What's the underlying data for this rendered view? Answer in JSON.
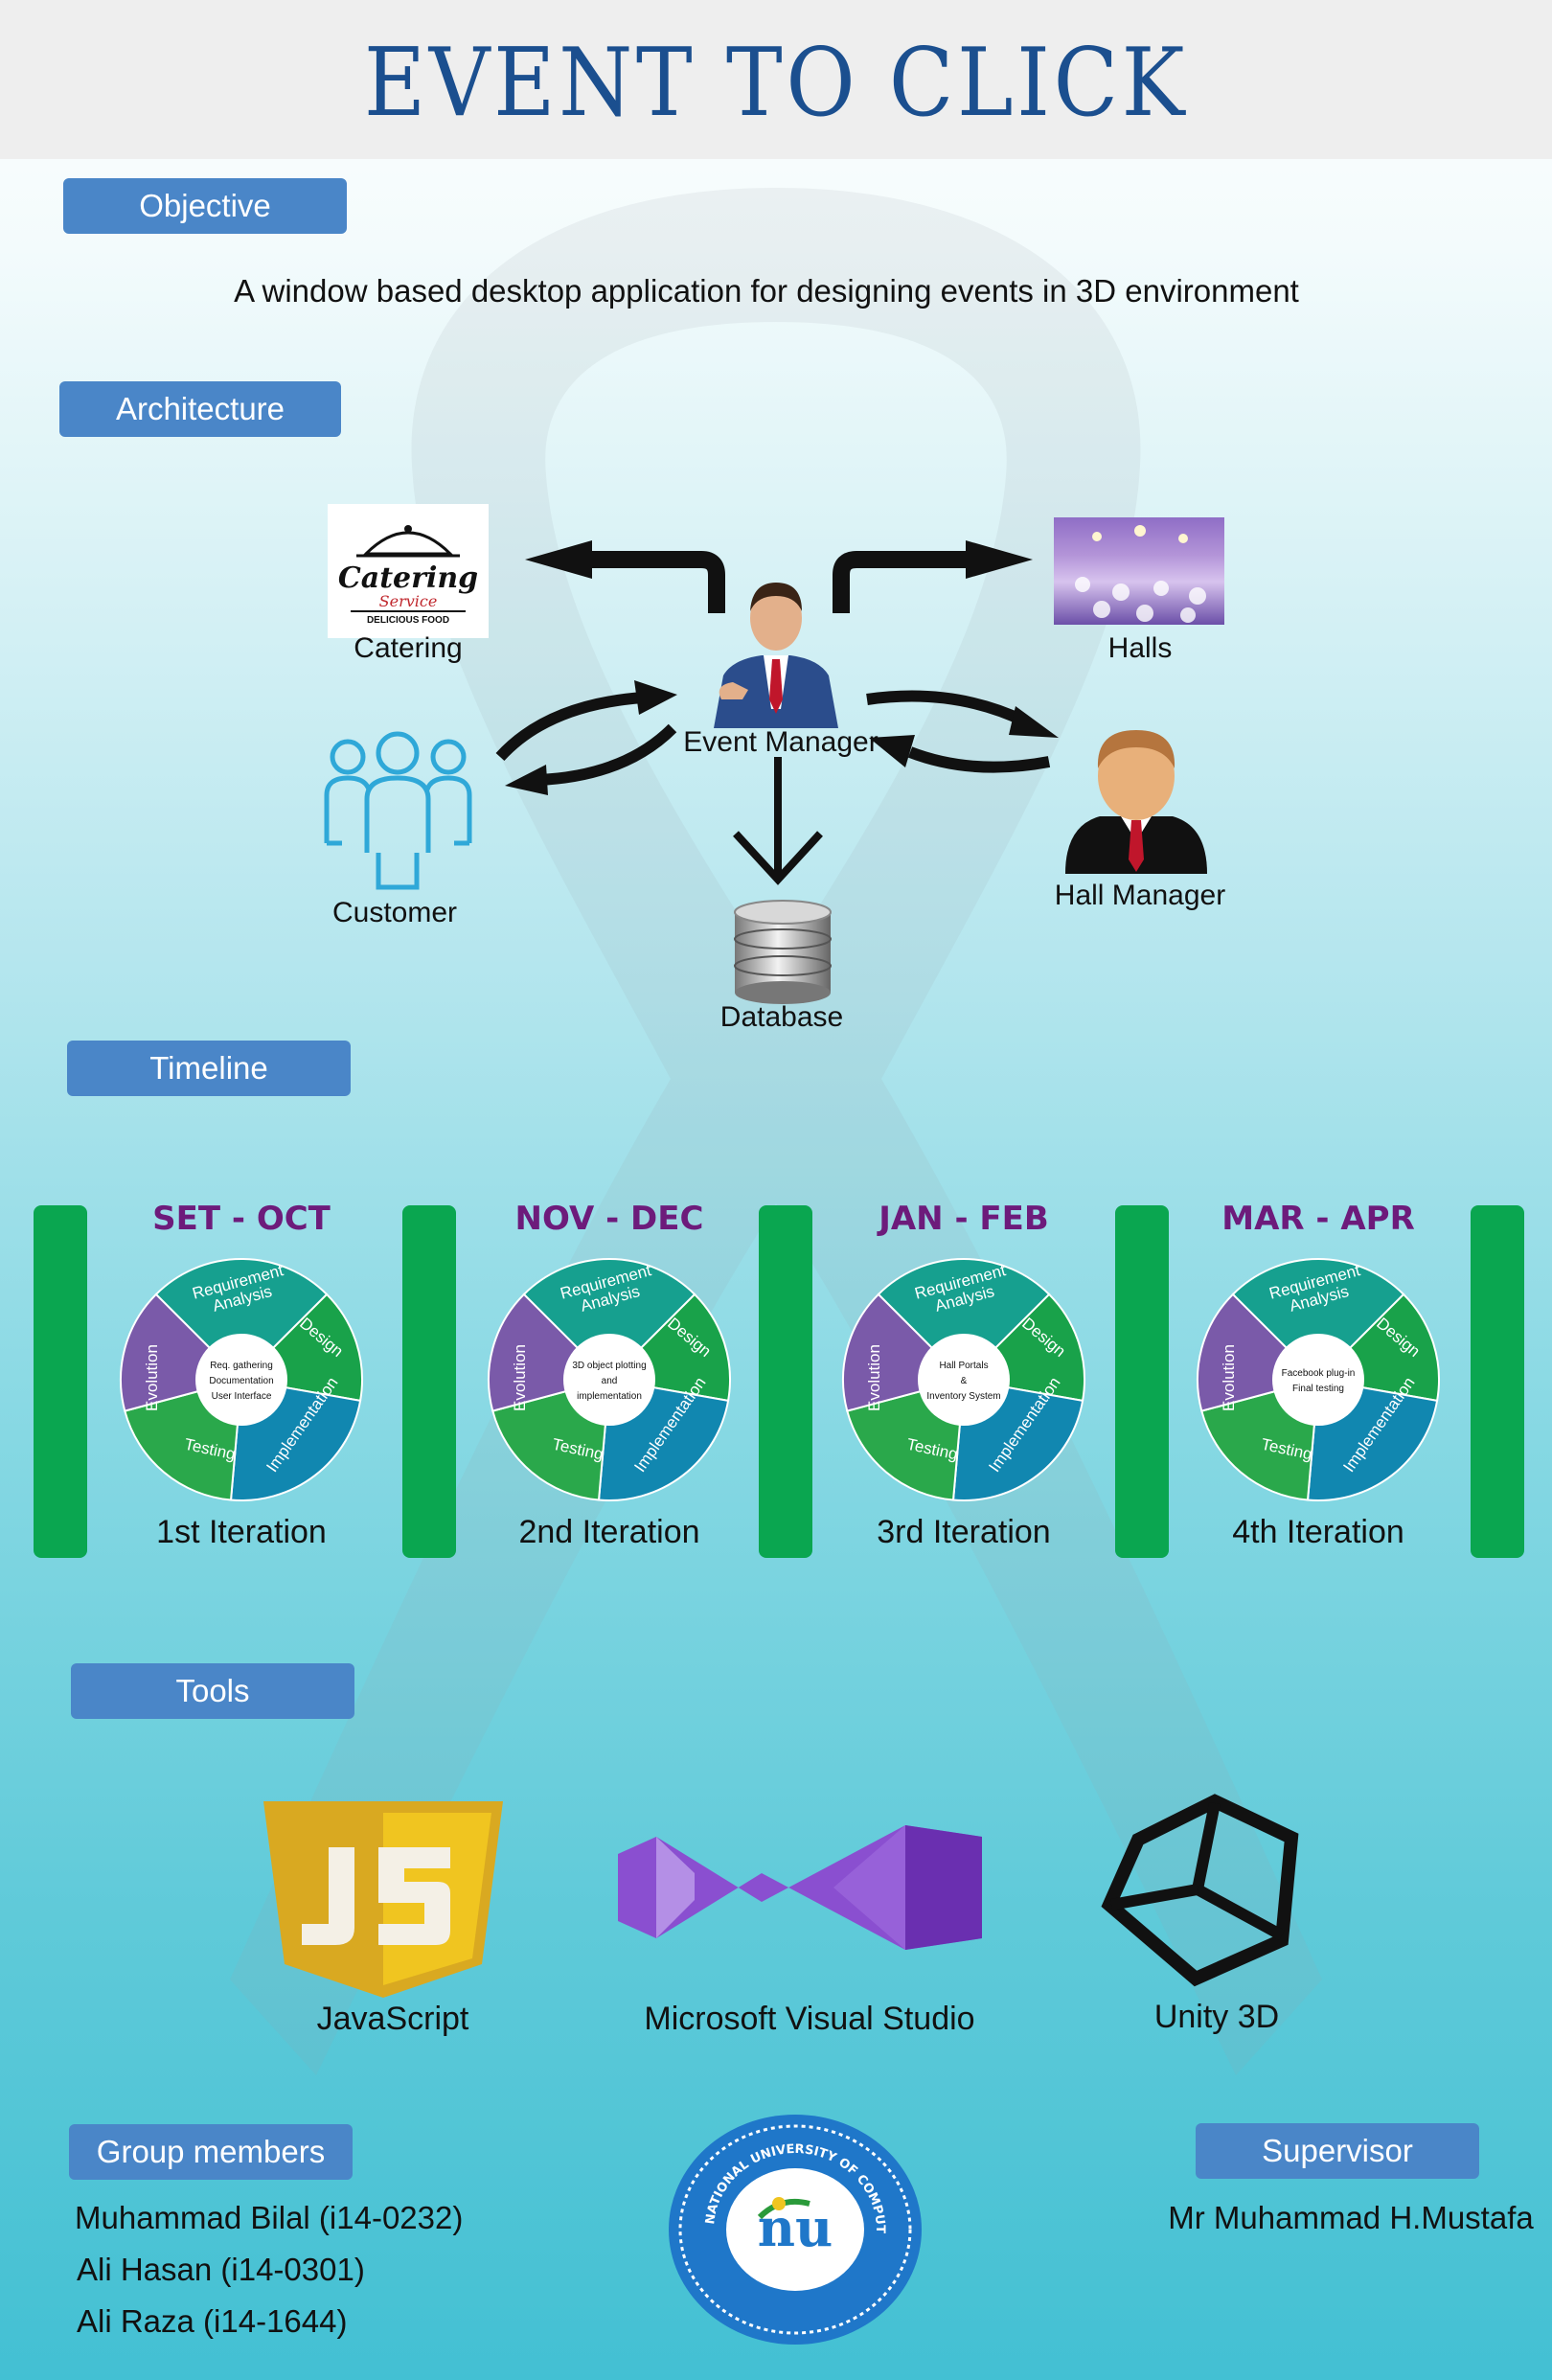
{
  "title": "EVENT TO CLICK",
  "objective": {
    "label": "Objective",
    "text": "A window based desktop application for designing events in 3D environment"
  },
  "architecture": {
    "label": "Architecture",
    "nodes": {
      "catering": "Catering",
      "catering_logo_line1": "Catering",
      "catering_logo_line2": "Service",
      "catering_logo_line3": "DELICIOUS FOOD",
      "halls": "Halls",
      "event_manager": "Event Manager",
      "customer": "Customer",
      "hall_manager": "Hall Manager",
      "database": "Database"
    }
  },
  "timeline": {
    "label": "Timeline",
    "wheel_segments": {
      "requirement": [
        "Requirement",
        "Analysis"
      ],
      "design": "Design",
      "implementation": "Implementation",
      "testing": "Testing",
      "evolution": "Evolution"
    },
    "iterations": [
      {
        "period": "SET - OCT",
        "name": "1st Iteration",
        "center": [
          "Req. gathering",
          "Documentation",
          "User Interface"
        ]
      },
      {
        "period": "NOV - DEC",
        "name": "2nd Iteration",
        "center": [
          "3D object plotting",
          "and",
          "implementation"
        ]
      },
      {
        "period": "JAN - FEB",
        "name": "3rd Iteration",
        "center": [
          "Hall Portals",
          "&",
          "Inventory System"
        ]
      },
      {
        "period": "MAR - APR",
        "name": "4th Iteration",
        "center": [
          "Facebook plug-in",
          "Final testing"
        ]
      }
    ]
  },
  "tools": {
    "label": "Tools",
    "items": [
      "JavaScript",
      "Microsoft Visual Studio",
      "Unity 3D"
    ]
  },
  "group_members": {
    "label": "Group members",
    "members": [
      "Muhammad Bilal (i14-0232)",
      "Ali Hasan (i14-0301)",
      "Ali Raza (i14-1644)"
    ]
  },
  "supervisor": {
    "label": "Supervisor",
    "name": "Mr Muhammad H.Mustafa"
  },
  "logo": {
    "text": "NATIONAL UNIVERSITY OF COMPUTER & EMERGING SCIENCES",
    "mark": "nu"
  },
  "colors": {
    "title": "#1b4f8f",
    "pill": "#4a86c8",
    "timeline_bar": "#0aa650",
    "period_text": "#6d1b7b",
    "js_yellow": "#f0c520",
    "vs_purple": "#8a4fd0"
  }
}
